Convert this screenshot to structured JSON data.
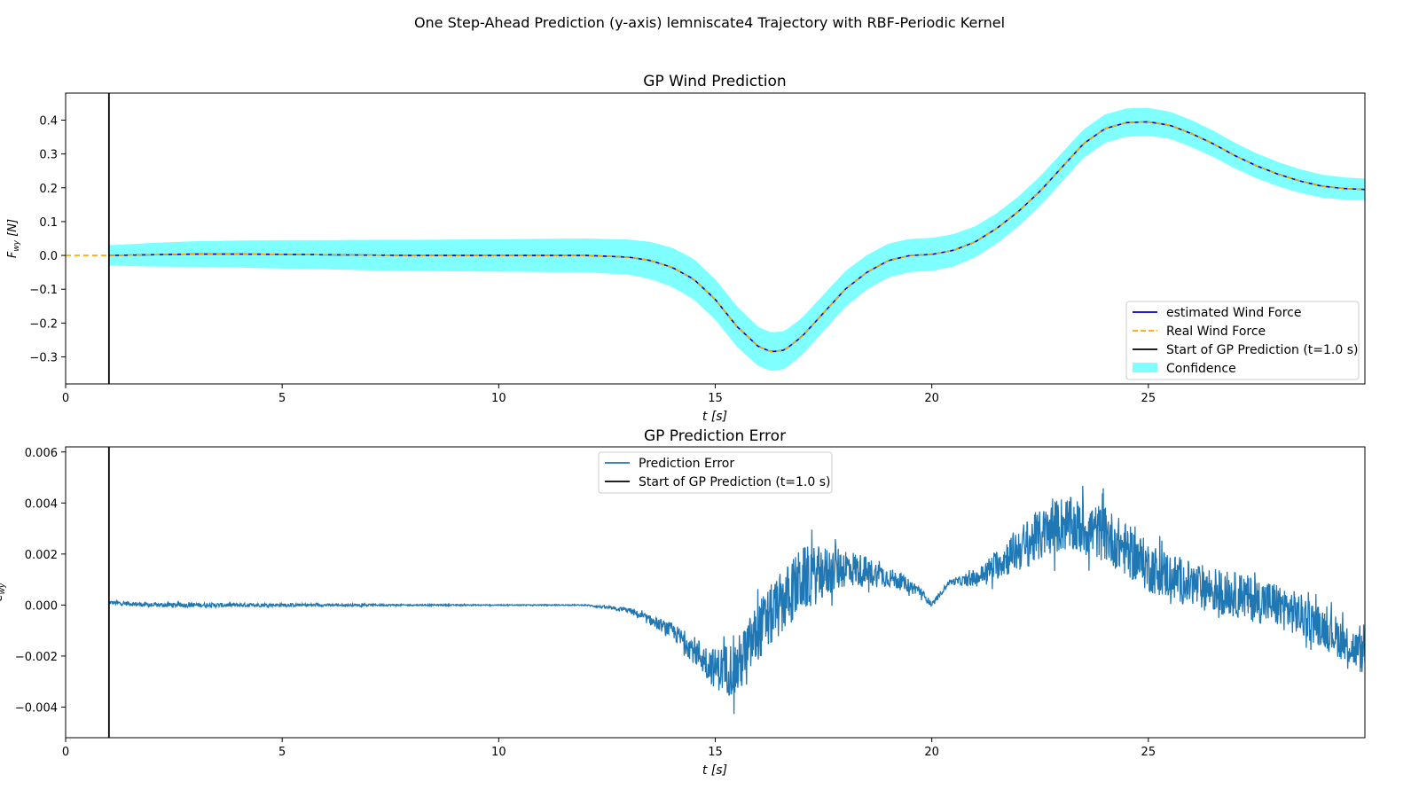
{
  "figure": {
    "suptitle": "One Step-Ahead Prediction (y-axis) lemniscate4 Trajectory with RBF-Periodic Kernel"
  },
  "colors": {
    "estimated": "#0000cd",
    "real": "#ffa500",
    "start_line": "#000000",
    "confidence": "#00ffff",
    "error": "#1f77b4"
  },
  "chart_data": [
    {
      "type": "line",
      "title": "GP Wind Prediction",
      "xlabel": "t [s]",
      "ylabel": "F_wy [N]",
      "xlim": [
        0,
        30
      ],
      "ylim": [
        -0.38,
        0.48
      ],
      "xticks": [
        0,
        5,
        10,
        15,
        20,
        25
      ],
      "yticks": [
        -0.3,
        -0.2,
        -0.1,
        0.0,
        0.1,
        0.2,
        0.3,
        0.4
      ],
      "ytick_labels": [
        "−0.3",
        "−0.2",
        "−0.1",
        "0.0",
        "0.1",
        "0.2",
        "0.3",
        "0.4"
      ],
      "grid": false,
      "legend_position": "lower-right",
      "x": [
        0,
        1,
        2,
        3,
        4,
        5,
        6,
        7,
        8,
        9,
        10,
        11,
        12,
        13,
        13.5,
        14,
        14.5,
        15,
        15.5,
        16,
        16.3,
        16.6,
        17,
        17.5,
        18,
        18.5,
        19,
        19.5,
        20,
        20.5,
        21,
        21.5,
        22,
        22.5,
        23,
        23.5,
        24,
        24.5,
        25,
        25.5,
        26,
        26.5,
        27,
        27.5,
        28,
        28.5,
        29,
        29.5,
        30
      ],
      "series": [
        {
          "name": "estimated Wind Force",
          "style": "solid",
          "x_start": 1,
          "values": [
            0.0,
            0.0,
            0.002,
            0.004,
            0.004,
            0.003,
            0.002,
            0.001,
            0.0,
            0.0,
            0.0,
            0.0,
            0.0,
            -0.005,
            -0.015,
            -0.035,
            -0.07,
            -0.13,
            -0.21,
            -0.27,
            -0.285,
            -0.28,
            -0.24,
            -0.17,
            -0.1,
            -0.05,
            -0.015,
            0.0,
            0.003,
            0.015,
            0.04,
            0.08,
            0.13,
            0.19,
            0.26,
            0.33,
            0.375,
            0.393,
            0.395,
            0.385,
            0.36,
            0.33,
            0.295,
            0.265,
            0.24,
            0.22,
            0.205,
            0.198,
            0.195
          ]
        },
        {
          "name": "Real Wind Force",
          "style": "dashed",
          "x_start": 0,
          "values": [
            0.0,
            0.0,
            0.002,
            0.004,
            0.004,
            0.003,
            0.002,
            0.001,
            0.0,
            0.0,
            0.0,
            0.0,
            0.0,
            -0.005,
            -0.015,
            -0.035,
            -0.07,
            -0.13,
            -0.21,
            -0.27,
            -0.285,
            -0.28,
            -0.24,
            -0.17,
            -0.1,
            -0.05,
            -0.015,
            0.0,
            0.003,
            0.015,
            0.04,
            0.08,
            0.13,
            0.19,
            0.26,
            0.33,
            0.375,
            0.393,
            0.395,
            0.385,
            0.36,
            0.33,
            0.295,
            0.265,
            0.24,
            0.22,
            0.205,
            0.198,
            0.195
          ]
        },
        {
          "name": "Confidence",
          "style": "band",
          "x_start": 1,
          "half_width": [
            0.03,
            0.03,
            0.035,
            0.038,
            0.04,
            0.042,
            0.043,
            0.045,
            0.046,
            0.047,
            0.048,
            0.049,
            0.05,
            0.052,
            0.055,
            0.058,
            0.06,
            0.06,
            0.06,
            0.058,
            0.057,
            0.056,
            0.055,
            0.054,
            0.053,
            0.051,
            0.05,
            0.049,
            0.049,
            0.048,
            0.046,
            0.045,
            0.044,
            0.044,
            0.043,
            0.042,
            0.042,
            0.042,
            0.041,
            0.04,
            0.04,
            0.039,
            0.038,
            0.037,
            0.036,
            0.035,
            0.034,
            0.033,
            0.032
          ]
        }
      ],
      "vline": {
        "x": 1.0,
        "name": "Start of GP Prediction (t=1.0 s)"
      }
    },
    {
      "type": "line",
      "title": "GP Prediction Error",
      "xlabel": "t [s]",
      "ylabel": "e_wy",
      "xlim": [
        0,
        30
      ],
      "ylim": [
        -0.0052,
        0.0062
      ],
      "xticks": [
        0,
        5,
        10,
        15,
        20,
        25
      ],
      "yticks": [
        -0.004,
        -0.002,
        0.0,
        0.002,
        0.004,
        0.006
      ],
      "ytick_labels": [
        "−0.004",
        "−0.002",
        "0.000",
        "0.002",
        "0.004",
        "0.006"
      ],
      "grid": false,
      "legend_position": "top-center",
      "noisy": true,
      "series": [
        {
          "name": "Prediction Error",
          "x": [
            1,
            2,
            4,
            6,
            8,
            10,
            12,
            13,
            14,
            15,
            15.5,
            16,
            17,
            18,
            19,
            19.7,
            20,
            20.4,
            21,
            22,
            23,
            24,
            25,
            26,
            27,
            28,
            29,
            30
          ],
          "values": [
            0.0001,
            0.0,
            0.0,
            0.0,
            0.0,
            0.0,
            0.0,
            -0.0002,
            -0.001,
            -0.0025,
            -0.0025,
            -0.001,
            0.001,
            0.0015,
            0.0011,
            0.0006,
            0.0,
            0.0009,
            0.001,
            0.0022,
            0.0032,
            0.0028,
            0.0015,
            0.0008,
            0.0004,
            0.0,
            -0.0008,
            -0.002
          ],
          "noise_amp": [
            8e-05,
            9e-05,
            8e-05,
            5e-05,
            3e-05,
            2e-05,
            2e-05,
            0.0001,
            0.0003,
            0.0008,
            0.0012,
            0.0012,
            0.0013,
            0.0008,
            0.0004,
            0.0002,
            0.0001,
            0.0001,
            0.0003,
            0.0009,
            0.0011,
            0.0011,
            0.001,
            0.0009,
            0.0009,
            0.0009,
            0.0008,
            0.0008
          ]
        }
      ],
      "vline": {
        "x": 1.0,
        "name": "Start of GP Prediction (t=1.0 s)"
      }
    }
  ]
}
